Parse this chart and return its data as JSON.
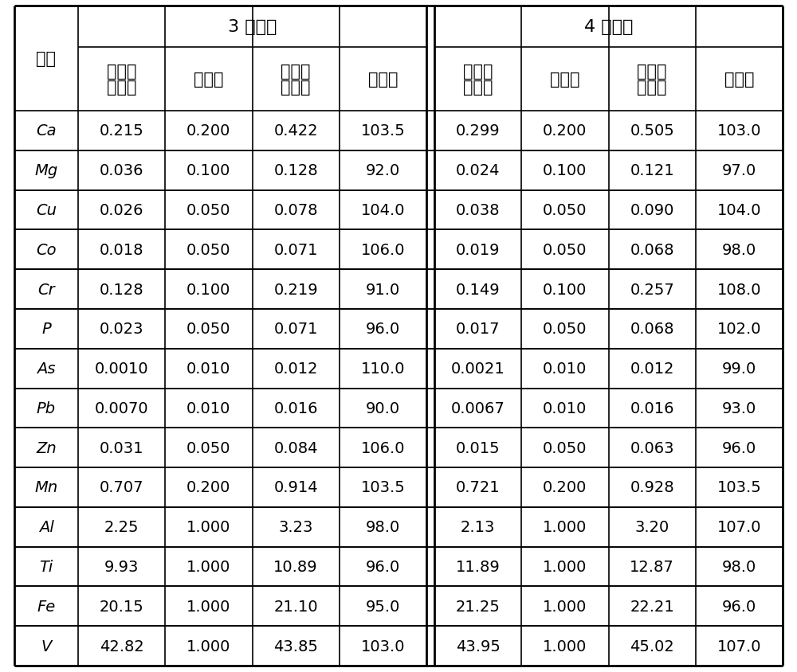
{
  "elements": [
    "Ca",
    "Mg",
    "Cu",
    "Co",
    "Cr",
    "P",
    "As",
    "Pb",
    "Zn",
    "Mn",
    "Al",
    "Ti",
    "Fe",
    "V"
  ],
  "sample3": {
    "before": [
      "0.215",
      "0.036",
      "0.026",
      "0.018",
      "0.128",
      "0.023",
      "0.0010",
      "0.0070",
      "0.031",
      "0.707",
      "2.25",
      "9.93",
      "20.15",
      "42.82"
    ],
    "added": [
      "0.200",
      "0.100",
      "0.050",
      "0.050",
      "0.100",
      "0.050",
      "0.010",
      "0.010",
      "0.050",
      "0.200",
      "1.000",
      "1.000",
      "1.000",
      "1.000"
    ],
    "after": [
      "0.422",
      "0.128",
      "0.078",
      "0.071",
      "0.219",
      "0.071",
      "0.012",
      "0.016",
      "0.084",
      "0.914",
      "3.23",
      "10.89",
      "21.10",
      "43.85"
    ],
    "recovery": [
      "103.5",
      "92.0",
      "104.0",
      "106.0",
      "91.0",
      "96.0",
      "110.0",
      "90.0",
      "106.0",
      "103.5",
      "98.0",
      "96.0",
      "95.0",
      "103.0"
    ]
  },
  "sample4": {
    "before": [
      "0.299",
      "0.024",
      "0.038",
      "0.019",
      "0.149",
      "0.017",
      "0.0021",
      "0.0067",
      "0.015",
      "0.721",
      "2.13",
      "11.89",
      "21.25",
      "43.95"
    ],
    "added": [
      "0.200",
      "0.100",
      "0.050",
      "0.050",
      "0.100",
      "0.050",
      "0.010",
      "0.010",
      "0.050",
      "0.200",
      "1.000",
      "1.000",
      "1.000",
      "1.000"
    ],
    "after": [
      "0.505",
      "0.121",
      "0.090",
      "0.068",
      "0.257",
      "0.068",
      "0.012",
      "0.016",
      "0.063",
      "0.928",
      "3.20",
      "12.87",
      "22.21",
      "45.02"
    ],
    "recovery": [
      "103.0",
      "97.0",
      "104.0",
      "98.0",
      "108.0",
      "102.0",
      "99.0",
      "93.0",
      "96.0",
      "103.5",
      "107.0",
      "98.0",
      "96.0",
      "107.0"
    ]
  },
  "header_row1_3": "3 号试样",
  "header_row1_4": "4 号试样",
  "col_header_element": "元素",
  "col_header_before_line1": "加标前",
  "col_header_before_line2": "测定值",
  "col_header_added": "加标量",
  "col_header_after_line1": "加标后",
  "col_header_after_line2": "测定值",
  "col_header_recovery": "回收率",
  "bg_color": "#ffffff",
  "border_color": "#000000",
  "font_size": 14,
  "header_font_size": 15,
  "data_font_size": 14
}
